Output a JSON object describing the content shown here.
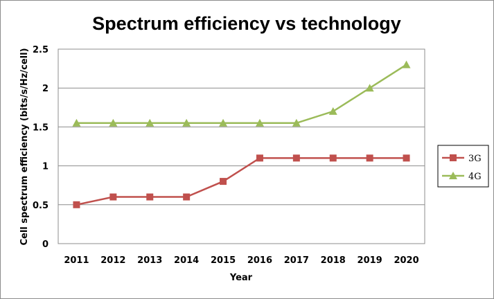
{
  "chart_data": {
    "type": "line",
    "title": "Spectrum efficiency vs technology",
    "xlabel": "Year",
    "ylabel": "Cell spectrum efficiency (bits/s/Hz/cell)",
    "categories": [
      "2011",
      "2012",
      "2013",
      "2014",
      "2015",
      "2016",
      "2017",
      "2018",
      "2019",
      "2020"
    ],
    "ylim": [
      0,
      2.5
    ],
    "yticks": [
      "0",
      "0.5",
      "1",
      "1.5",
      "2",
      "2.5"
    ],
    "grid": true,
    "legend": "right",
    "series": [
      {
        "name": "3G",
        "color": "#c0504d",
        "marker": "square",
        "values": [
          0.5,
          0.6,
          0.6,
          0.6,
          0.8,
          1.1,
          1.1,
          1.1,
          1.1,
          1.1
        ]
      },
      {
        "name": "4G",
        "color": "#9bbb59",
        "marker": "triangle",
        "values": [
          1.55,
          1.55,
          1.55,
          1.55,
          1.55,
          1.55,
          1.55,
          1.7,
          2.0,
          2.3
        ]
      }
    ]
  }
}
